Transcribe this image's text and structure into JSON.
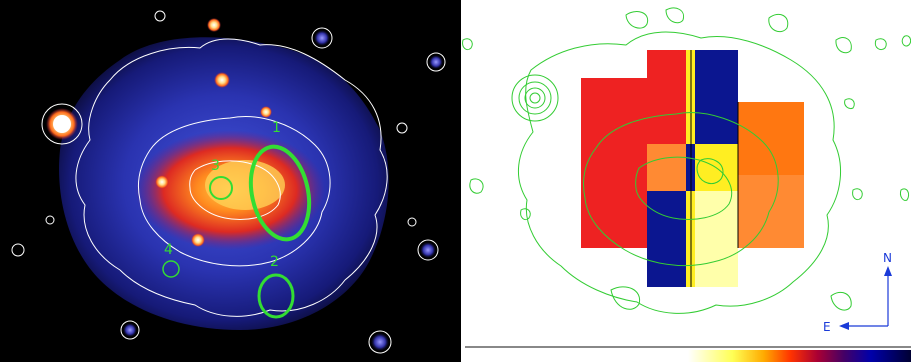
{
  "left_panel": {
    "region_labels": [
      "1",
      "2",
      "3",
      "4"
    ],
    "colors": {
      "background": "#000000",
      "contour": "#ffffff",
      "region_outline": "#33dd33",
      "halo_outer": "#1b1f8f",
      "halo_mid": "#3344cc",
      "core_red": "#dd2222",
      "core_orange": "#ff7a1a",
      "core_yellow": "#ffd24a",
      "point_source": "#ffe9a0"
    }
  },
  "right_panel": {
    "compass": {
      "north_label": "N",
      "east_label": "E",
      "color": "#1a3ad8"
    },
    "contour_color": "#33cc33",
    "map_colors": {
      "red": "#ee2222",
      "orange": "#ff7711",
      "orange_light": "#ff8a33",
      "navy": "#0b1690",
      "yellow": "#ffee22",
      "pale_yellow": "#ffffaa",
      "light_orange": "#ffa630"
    },
    "colorbar_stops": [
      "#ffffff",
      "#ffff55",
      "#ffaa00",
      "#ff3300",
      "#aa0033",
      "#440066",
      "#0000aa",
      "#000033"
    ]
  }
}
